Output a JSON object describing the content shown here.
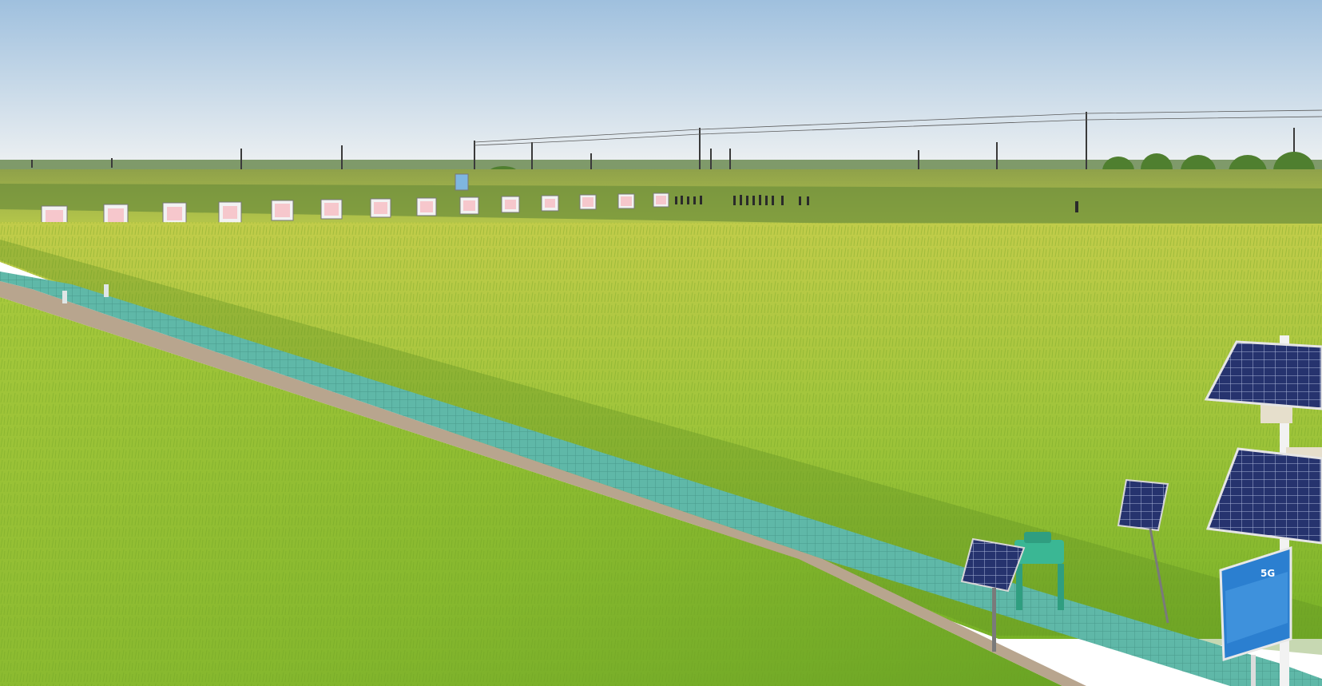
{
  "scene": {
    "description_visible_text": "",
    "signs_in_field_count": 14,
    "palette": {
      "sky_top": "#8fb8de",
      "sky_bottom": "#e8eef3",
      "field_far": "#b7c94a",
      "field_mid": "#8fbf2c",
      "field_near": "#6fae22",
      "walkway": "#5fb8a8",
      "sign_frame": "#f2f2f2",
      "sign_text": "#e35c6a",
      "solar_panel": "#2c3a7a",
      "info_board": "#2b7fd0"
    },
    "info_board": {
      "logo_text": "5G",
      "caption": ""
    }
  }
}
